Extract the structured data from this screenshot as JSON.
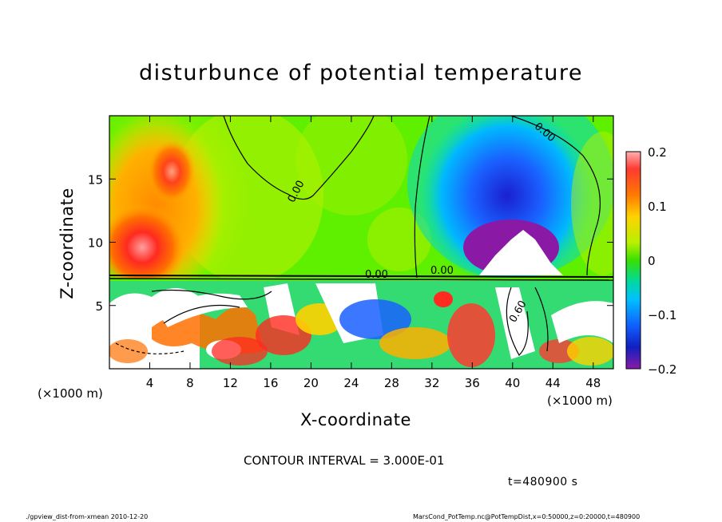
{
  "chart_data": {
    "type": "heatmap",
    "title": "disturbunce of potential temperature",
    "xlabel": "X-coordinate",
    "ylabel": "Z-coordinate",
    "x_unit_left": "(×1000 m)",
    "x_unit_right": "(×1000 m)",
    "xlim": [
      0,
      50
    ],
    "ylim": [
      0,
      20
    ],
    "x_ticks": [
      4,
      8,
      12,
      16,
      20,
      24,
      28,
      32,
      36,
      40,
      44,
      48
    ],
    "y_ticks": [
      5,
      10,
      15
    ],
    "colorbar": {
      "range": [
        -0.2,
        0.2
      ],
      "ticks": [
        0.2,
        0.1,
        0,
        -0.1,
        -0.2
      ],
      "tick_labels": [
        "0.2",
        "0.1",
        "0",
        "−0.1",
        "−0.2"
      ]
    },
    "contour_labels": [
      "0.00",
      "0.00",
      "0.00",
      "0.00",
      "0.60"
    ],
    "contour_interval_text": "CONTOUR INTERVAL = 3.000E-01",
    "time_text": "t=480900 s"
  },
  "footer": {
    "left": "./gpview_dist-from-xmean  2010-12-20",
    "right": "MarsCond_PotTemp.nc@PotTempDist,x=0:50000,z=0:20000,t=480900"
  },
  "colors": {
    "green": "#5ff000",
    "orange": "#ff9900",
    "red": "#ff2020",
    "blue": "#1a50ff",
    "purple": "#8a1aa6"
  }
}
